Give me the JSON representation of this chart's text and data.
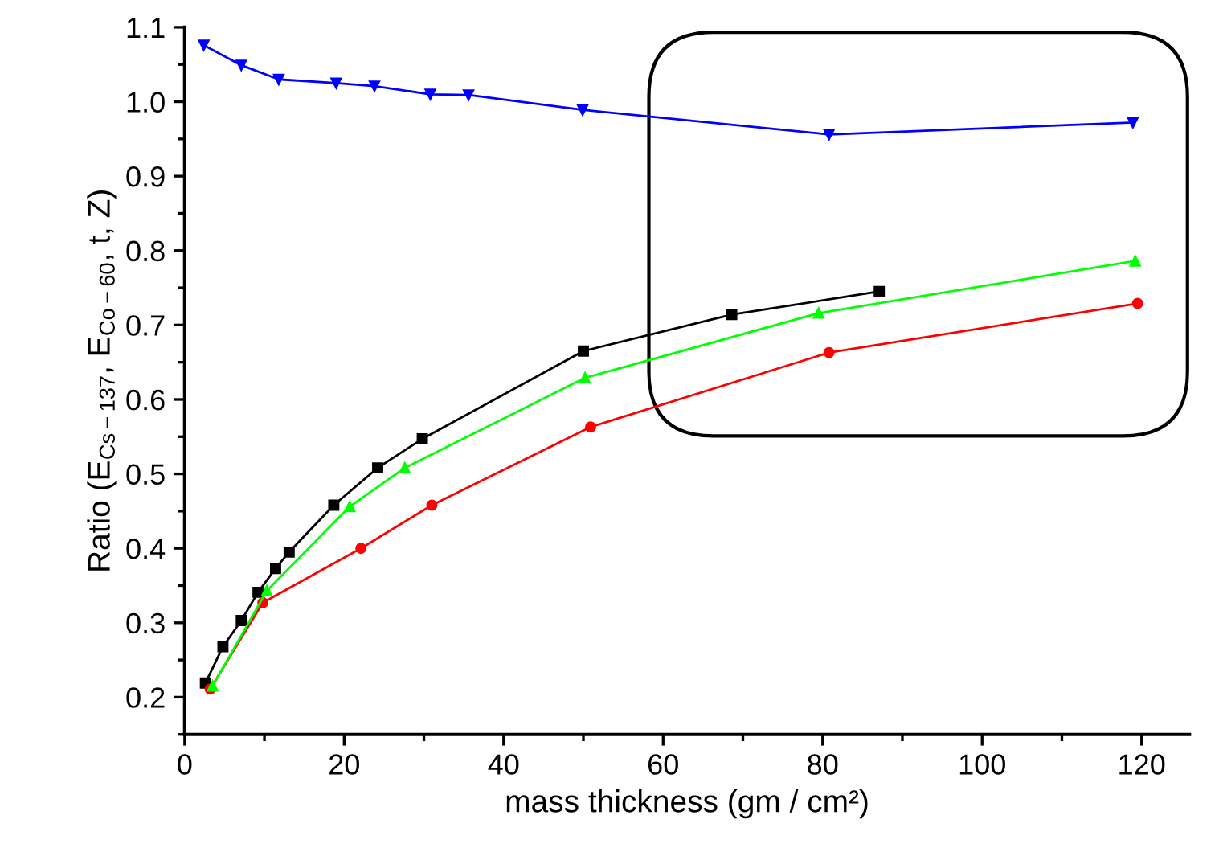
{
  "chart_data": {
    "type": "line",
    "xlabel": "mass thickness (gm / cm²)",
    "ylabel": "Ratio (E$_{Cs−137}$, E$_{Co−60}$, t, Z)",
    "xlim": [
      0,
      126
    ],
    "xticks": [
      0,
      20,
      40,
      60,
      80,
      100,
      120
    ],
    "ylim": [
      0.15,
      1.1
    ],
    "yticks": [
      {
        "value": 0.2,
        "label": "0.2"
      },
      {
        "value": 0.3,
        "label": "0.3"
      },
      {
        "value": 0.4,
        "label": "0.4"
      },
      {
        "value": 0.5,
        "label": "0.5"
      },
      {
        "value": 0.6,
        "label": "0.6"
      },
      {
        "value": 0.7,
        "label": "0.7"
      },
      {
        "value": 0.8,
        "label": "0.8"
      },
      {
        "value": 0.9,
        "label": "0.9"
      },
      {
        "value": 1.0,
        "label": "1.0"
      },
      {
        "value": 1.1,
        "label": "1.1"
      }
    ],
    "grid": false,
    "line_style": "solid",
    "series": [
      {
        "color": "#000000",
        "marker": "square",
        "x": [
          2.6,
          4.8,
          7.1,
          9.2,
          11.4,
          13.1,
          18.7,
          24.2,
          29.8,
          50,
          68.6,
          87.1
        ],
        "values": [
          0.219,
          0.268,
          0.303,
          0.341,
          0.373,
          0.395,
          0.458,
          0.508,
          0.547,
          0.665,
          0.714,
          0.745
        ]
      },
      {
        "color": "#ff0000",
        "marker": "circle",
        "x": [
          3.2,
          9.8,
          22.1,
          31,
          50.9,
          80.8,
          119.5
        ],
        "values": [
          0.211,
          0.327,
          0.4,
          0.458,
          0.563,
          0.663,
          0.729
        ]
      },
      {
        "color": "#00ff00",
        "marker": "triangle",
        "x": [
          3.5,
          10.3,
          20.7,
          27.6,
          50.2,
          79.5,
          119.2
        ],
        "values": [
          0.215,
          0.343,
          0.456,
          0.508,
          0.629,
          0.716,
          0.786
        ]
      },
      {
        "color": "#0000ff",
        "marker": "triangle_down",
        "x": [
          2.4,
          7.1,
          11.8,
          19,
          23.8,
          30.8,
          35.6,
          49.9,
          80.8,
          118.9
        ],
        "values": [
          1.076,
          1.049,
          1.03,
          1.025,
          1.021,
          1.01,
          1.009,
          0.989,
          0.956,
          0.972
        ]
      }
    ]
  }
}
